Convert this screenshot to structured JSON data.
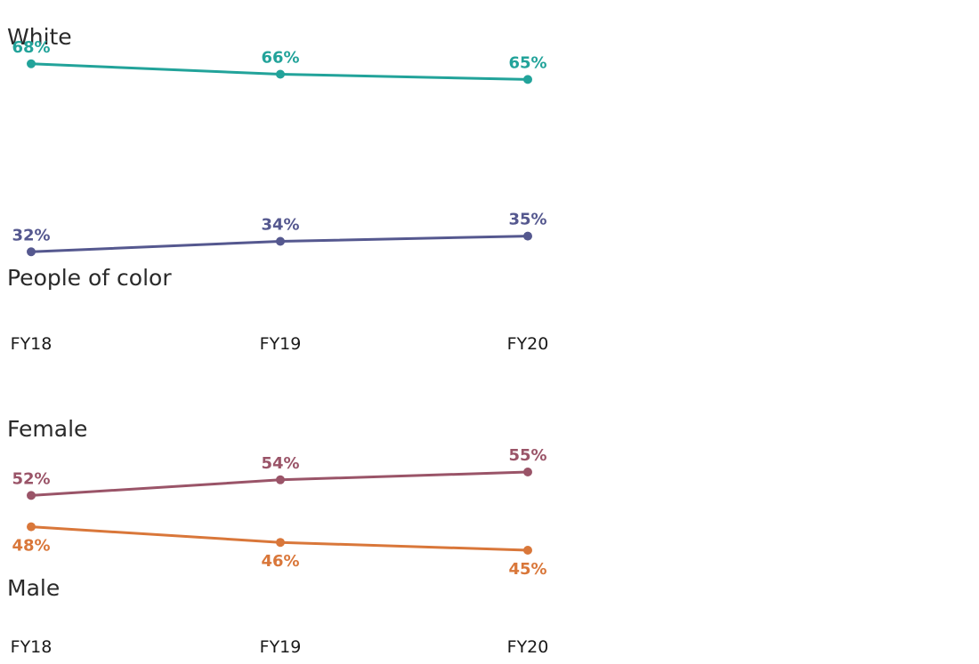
{
  "chart_data": [
    {
      "type": "line",
      "x": [
        "FY18",
        "FY19",
        "FY20"
      ],
      "ylim": [
        30,
        70
      ],
      "series": [
        {
          "name": "White",
          "values": [
            68,
            66,
            65
          ],
          "labels": [
            "68%",
            "66%",
            "65%"
          ],
          "color": "#22a39a"
        },
        {
          "name": "People of color",
          "values": [
            32,
            34,
            35
          ],
          "labels": [
            "32%",
            "34%",
            "35%"
          ],
          "color": "#55588f"
        }
      ]
    },
    {
      "type": "line",
      "x": [
        "FY18",
        "FY19",
        "FY20"
      ],
      "ylim": [
        40,
        60
      ],
      "series": [
        {
          "name": "Female",
          "values": [
            52,
            54,
            55
          ],
          "labels": [
            "52%",
            "54%",
            "55%"
          ],
          "color": "#9a5468"
        },
        {
          "name": "Male",
          "values": [
            48,
            46,
            45
          ],
          "labels": [
            "48%",
            "46%",
            "45%"
          ],
          "color": "#d9773a"
        }
      ]
    }
  ]
}
